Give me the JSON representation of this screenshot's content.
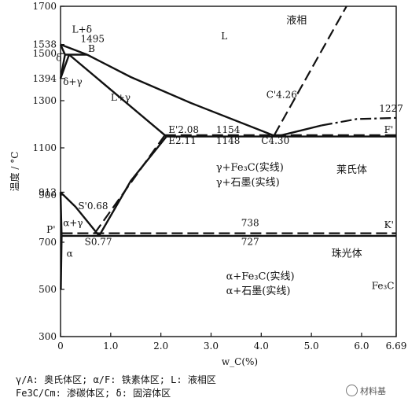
{
  "chart_data": {
    "type": "phase-diagram",
    "xlabel": "w_C(%)",
    "ylabel": "温度 / °C",
    "xlim": [
      0,
      6.69
    ],
    "ylim": [
      300,
      1700
    ],
    "x_ticks": [
      {
        "value": 0,
        "label": "0"
      },
      {
        "value": 1,
        "label": "1.0"
      },
      {
        "value": 2,
        "label": "2.0"
      },
      {
        "value": 3,
        "label": "3.0"
      },
      {
        "value": 4,
        "label": "4.0"
      },
      {
        "value": 5,
        "label": "5.0"
      },
      {
        "value": 6,
        "label": "6.0"
      },
      {
        "value": 6.69,
        "label": "6.69"
      }
    ],
    "y_ticks": [
      {
        "value": 300,
        "label": "300"
      },
      {
        "value": 500,
        "label": "500"
      },
      {
        "value": 700,
        "label": "700"
      },
      {
        "value": 900,
        "label": "900"
      },
      {
        "value": 1100,
        "label": "1100"
      },
      {
        "value": 1300,
        "label": "1300"
      },
      {
        "value": 1500,
        "label": "1500"
      },
      {
        "value": 1700,
        "label": "1700"
      }
    ],
    "temperature_labels": [
      {
        "value": 1538,
        "label": "1538"
      },
      {
        "value": 1394,
        "label": "1394"
      },
      {
        "value": 912,
        "label": "912"
      }
    ],
    "solid_lines": [
      {
        "name": "liquidus-AB",
        "points": [
          [
            0,
            1538
          ],
          [
            0.53,
            1495
          ]
        ]
      },
      {
        "name": "liquidus-BC",
        "points": [
          [
            0.53,
            1495
          ],
          [
            1.4,
            1400
          ],
          [
            2.6,
            1290
          ],
          [
            4.3,
            1148
          ]
        ]
      },
      {
        "name": "solidus-AH",
        "points": [
          [
            0,
            1538
          ],
          [
            0.09,
            1495
          ]
        ]
      },
      {
        "name": "peritectic-HJB",
        "points": [
          [
            0.09,
            1495
          ],
          [
            0.53,
            1495
          ]
        ]
      },
      {
        "name": "NH",
        "points": [
          [
            0,
            1394
          ],
          [
            0.09,
            1495
          ]
        ]
      },
      {
        "name": "NJ",
        "points": [
          [
            0,
            1394
          ],
          [
            0.17,
            1495
          ]
        ]
      },
      {
        "name": "solidus-JE",
        "points": [
          [
            0.17,
            1495
          ],
          [
            2.11,
            1148
          ]
        ]
      },
      {
        "name": "eutectic-ECF",
        "points": [
          [
            2.11,
            1148
          ],
          [
            6.69,
            1148
          ]
        ]
      },
      {
        "name": "GS",
        "points": [
          [
            0,
            912
          ],
          [
            0.3,
            850
          ],
          [
            0.77,
            727
          ]
        ]
      },
      {
        "name": "ES",
        "points": [
          [
            2.11,
            1148
          ],
          [
            1.4,
            960
          ],
          [
            0.77,
            727
          ]
        ]
      },
      {
        "name": "GP",
        "points": [
          [
            0,
            912
          ],
          [
            0.0218,
            727
          ]
        ]
      },
      {
        "name": "PQ",
        "points": [
          [
            0.0218,
            727
          ],
          [
            0.006,
            500
          ]
        ]
      },
      {
        "name": "eutectoid-PSK",
        "points": [
          [
            0.0218,
            727
          ],
          [
            6.69,
            727
          ]
        ]
      },
      {
        "name": "CD-start",
        "points": [
          [
            4.3,
            1148
          ],
          [
            5.2,
            1195
          ]
        ]
      }
    ],
    "dashed_lines": [
      {
        "name": "liquidus-CD-prime",
        "points": [
          [
            4.26,
            1154
          ],
          [
            5.7,
            1700
          ]
        ]
      },
      {
        "name": "E-prime-S-prime",
        "points": [
          [
            2.08,
            1154
          ],
          [
            0.68,
            738
          ]
        ]
      },
      {
        "name": "eutectic-E-prime-F-prime",
        "points": [
          [
            2.08,
            1154
          ],
          [
            6.69,
            1154
          ]
        ]
      },
      {
        "name": "eutectoid-P-prime-K-prime",
        "points": [
          [
            0.0218,
            738
          ],
          [
            6.69,
            738
          ]
        ]
      }
    ],
    "dashdot_lines": [
      {
        "name": "CD-solubility",
        "points": [
          [
            5.2,
            1195
          ],
          [
            5.9,
            1222
          ],
          [
            6.69,
            1227
          ]
        ]
      }
    ],
    "point_labels": [
      {
        "text": "L+δ",
        "x": 0.23,
        "y": 1588
      },
      {
        "text": "1495",
        "x": 0.4,
        "y": 1548
      },
      {
        "text": "B",
        "x": 0.55,
        "y": 1507
      },
      {
        "text": "δ",
        "x": -0.09,
        "y": 1468
      },
      {
        "text": "δ+γ",
        "x": 0.05,
        "y": 1366
      },
      {
        "text": "L+γ",
        "x": 1.0,
        "y": 1300
      },
      {
        "text": "C'4.26",
        "x": 4.1,
        "y": 1312
      },
      {
        "text": "1227",
        "x": 6.35,
        "y": 1254
      },
      {
        "text": "E'2.08",
        "x": 2.15,
        "y": 1164
      },
      {
        "text": "1154",
        "x": 3.1,
        "y": 1164
      },
      {
        "text": "F'",
        "x": 6.45,
        "y": 1164
      },
      {
        "text": "E2.11",
        "x": 2.15,
        "y": 1117
      },
      {
        "text": "1148",
        "x": 3.1,
        "y": 1117
      },
      {
        "text": "C4.30",
        "x": 4.0,
        "y": 1117
      },
      {
        "text": "S'0.68",
        "x": 0.35,
        "y": 840
      },
      {
        "text": "P'",
        "x": -0.28,
        "y": 740
      },
      {
        "text": "α+γ",
        "x": 0.05,
        "y": 768
      },
      {
        "text": "738",
        "x": 3.6,
        "y": 768
      },
      {
        "text": "K'",
        "x": 6.45,
        "y": 760
      },
      {
        "text": "S0.77",
        "x": 0.48,
        "y": 689
      },
      {
        "text": "727",
        "x": 3.6,
        "y": 689
      },
      {
        "text": "α",
        "x": 0.12,
        "y": 638
      }
    ],
    "region_labels": [
      {
        "text": "L",
        "x": 3.2,
        "y": 1560
      },
      {
        "text": "液相",
        "x": 4.5,
        "y": 1627
      },
      {
        "text": "γ+Fe₃C(实线)",
        "x": 3.1,
        "y": 1003
      },
      {
        "text": "γ+石墨(实线)",
        "x": 3.1,
        "y": 940
      },
      {
        "text": "莱氏体",
        "x": 5.5,
        "y": 993
      },
      {
        "text": "珠光体",
        "x": 5.4,
        "y": 638
      },
      {
        "text": "α+Fe₃C(实线)",
        "x": 3.3,
        "y": 542
      },
      {
        "text": "α+石墨(实线)",
        "x": 3.3,
        "y": 480
      },
      {
        "text": "Fe₃C",
        "x": 6.2,
        "y": 502
      }
    ]
  },
  "legend": {
    "line1": "γ/A: 奥氏体区; α/F: 铁素体区; L: 液相区",
    "line2": "Fe3C/Cm: 渗碳体区; δ: 固溶体区"
  },
  "watermark": "材料基"
}
